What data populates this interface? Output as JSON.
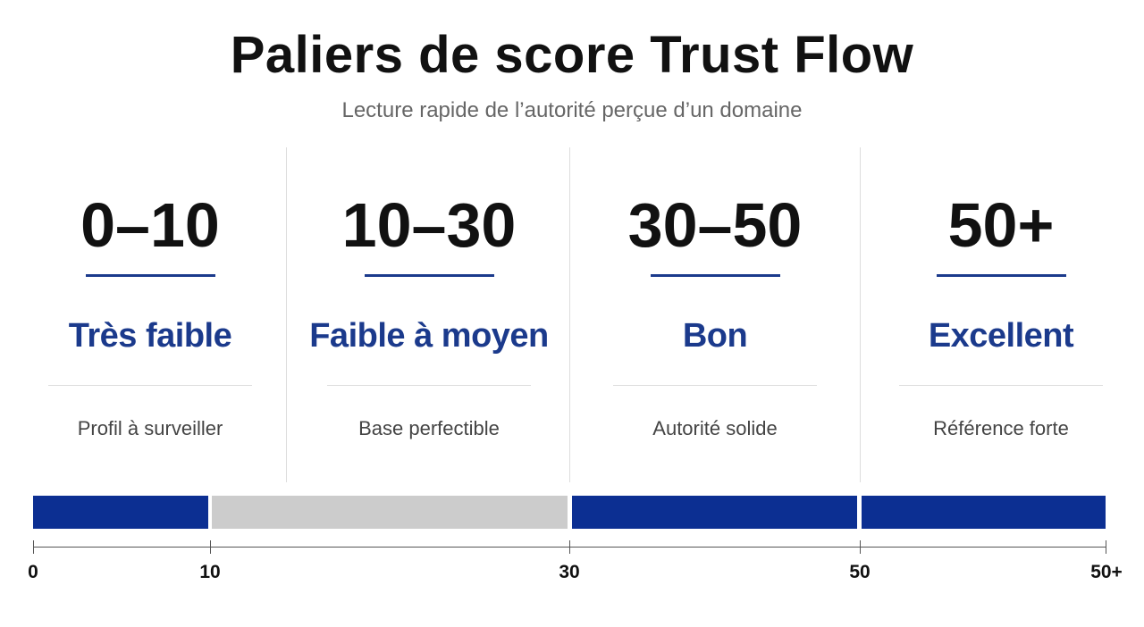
{
  "title": "Paliers de score Trust Flow",
  "subtitle": "Lecture rapide de l’autorité perçue d’un domaine",
  "tiers": [
    {
      "range": "0–10",
      "label": "Très faible",
      "description": "Profil à surveiller"
    },
    {
      "range": "10–30",
      "label": "Faible à moyen",
      "description": "Base perfectible"
    },
    {
      "range": "30–50",
      "label": "Bon",
      "description": "Autorité solide"
    },
    {
      "range": "50+",
      "label": "Excellent",
      "description": "Référence forte"
    }
  ],
  "scale": {
    "ticks": [
      "0",
      "10",
      "30",
      "50",
      "50+"
    ]
  }
}
